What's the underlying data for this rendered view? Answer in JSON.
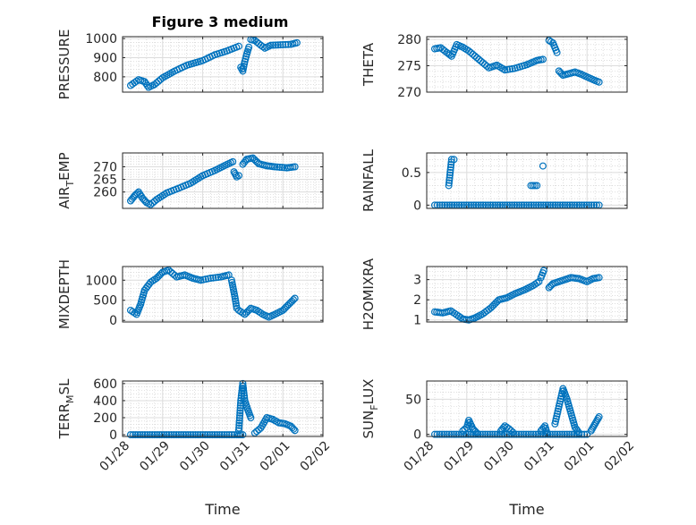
{
  "figure": {
    "title": "Figure 3 medium",
    "series_color": "#0072BD"
  },
  "chart_data": [
    {
      "type": "scatter",
      "ylabel": "PRESSURE",
      "title": "Figure 3 medium",
      "xlabel": "",
      "xlim": [
        28,
        33
      ],
      "ylim": [
        720,
        1010
      ],
      "yticks": [
        800,
        900,
        1000
      ],
      "xticks": [
        28,
        29,
        30,
        31,
        32,
        33
      ],
      "xticklabels": [],
      "grid": true,
      "segments": [
        {
          "points": [
            [
              28.2,
              755
            ],
            [
              28.3,
              770
            ],
            [
              28.4,
              785
            ],
            [
              28.55,
              775
            ],
            [
              28.65,
              745
            ],
            [
              28.8,
              760
            ],
            [
              29.0,
              795
            ],
            [
              29.3,
              830
            ],
            [
              29.6,
              860
            ],
            [
              30.0,
              885
            ],
            [
              30.3,
              915
            ],
            [
              30.6,
              935
            ],
            [
              30.9,
              960
            ]
          ]
        },
        {
          "points": [
            [
              30.95,
              850
            ],
            [
              31.0,
              830
            ],
            [
              31.05,
              880
            ],
            [
              31.1,
              920
            ],
            [
              31.15,
              955
            ]
          ]
        },
        {
          "points": [
            [
              31.2,
              995
            ],
            [
              31.3,
              990
            ],
            [
              31.45,
              965
            ],
            [
              31.55,
              950
            ],
            [
              31.7,
              965
            ],
            [
              32.0,
              968
            ],
            [
              32.2,
              970
            ],
            [
              32.35,
              978
            ]
          ]
        }
      ]
    },
    {
      "type": "scatter",
      "ylabel": "THETA",
      "xlabel": "",
      "xlim": [
        28,
        33
      ],
      "ylim": [
        270,
        280.5
      ],
      "yticks": [
        270,
        275,
        280
      ],
      "xticks": [
        28,
        29,
        30,
        31,
        32,
        33
      ],
      "xticklabels": [],
      "grid": true,
      "segments": [
        {
          "points": [
            [
              28.2,
              278.2
            ],
            [
              28.35,
              278.4
            ],
            [
              28.5,
              277.5
            ],
            [
              28.62,
              276.8
            ],
            [
              28.75,
              279
            ],
            [
              28.9,
              278.5
            ],
            [
              29.05,
              277.8
            ],
            [
              29.3,
              276.2
            ],
            [
              29.55,
              274.6
            ],
            [
              29.75,
              275.1
            ],
            [
              29.95,
              274.2
            ],
            [
              30.2,
              274.5
            ],
            [
              30.5,
              275.2
            ],
            [
              30.75,
              276
            ],
            [
              30.9,
              276.2
            ]
          ]
        },
        {
          "points": [
            [
              31.05,
              279.8
            ],
            [
              31.15,
              279.3
            ],
            [
              31.25,
              277.5
            ]
          ]
        },
        {
          "points": [
            [
              31.3,
              274
            ],
            [
              31.4,
              273.2
            ],
            [
              31.55,
              273.5
            ],
            [
              31.7,
              273.8
            ],
            [
              31.85,
              273.4
            ],
            [
              32.05,
              272.7
            ],
            [
              32.2,
              272.2
            ],
            [
              32.3,
              271.9
            ]
          ]
        }
      ]
    },
    {
      "type": "scatter",
      "ylabel": "AIR_TEMP",
      "xlabel": "",
      "xlim": [
        28,
        33
      ],
      "ylim": [
        253.5,
        275.5
      ],
      "yticks": [
        260,
        265,
        270
      ],
      "xticks": [
        28,
        29,
        30,
        31,
        32,
        33
      ],
      "xticklabels": [],
      "grid": true,
      "segments": [
        {
          "points": [
            [
              28.2,
              256.5
            ],
            [
              28.3,
              258.5
            ],
            [
              28.4,
              260
            ],
            [
              28.5,
              257.5
            ],
            [
              28.6,
              255.8
            ],
            [
              28.7,
              255
            ],
            [
              28.85,
              257
            ],
            [
              29.1,
              259.6
            ],
            [
              29.4,
              261.5
            ],
            [
              29.7,
              263.5
            ],
            [
              30.0,
              266.5
            ],
            [
              30.3,
              268.5
            ],
            [
              30.55,
              270.5
            ],
            [
              30.75,
              272
            ]
          ]
        },
        {
          "points": [
            [
              30.78,
              268
            ],
            [
              30.85,
              266
            ],
            [
              30.9,
              266.5
            ]
          ]
        },
        {
          "points": [
            [
              31.0,
              271
            ],
            [
              31.1,
              273
            ],
            [
              31.25,
              273.5
            ],
            [
              31.4,
              271.2
            ],
            [
              31.6,
              270.4
            ],
            [
              31.8,
              270
            ],
            [
              32.1,
              269.6
            ],
            [
              32.3,
              270
            ]
          ]
        }
      ]
    },
    {
      "type": "scatter",
      "ylabel": "RAINFALL",
      "xlabel": "",
      "xlim": [
        28,
        33
      ],
      "ylim": [
        -0.05,
        0.8
      ],
      "yticks": [
        0,
        0.5
      ],
      "xticks": [
        28,
        29,
        30,
        31,
        32,
        33
      ],
      "xticklabels": [],
      "grid": true,
      "segments": [
        {
          "points": [
            [
              28.2,
              0
            ],
            [
              28.45,
              0
            ],
            [
              28.75,
              0
            ],
            [
              29.05,
              0
            ],
            [
              29.35,
              0
            ],
            [
              29.65,
              0
            ],
            [
              29.95,
              0
            ],
            [
              30.25,
              0
            ],
            [
              30.55,
              0
            ],
            [
              30.85,
              0
            ],
            [
              31.15,
              0
            ],
            [
              31.45,
              0
            ],
            [
              31.75,
              0
            ],
            [
              32.05,
              0
            ],
            [
              32.3,
              0
            ]
          ]
        },
        {
          "points": [
            [
              28.55,
              0.3
            ],
            [
              28.62,
              0.7
            ],
            [
              28.68,
              0.7
            ]
          ]
        },
        {
          "points": [
            [
              30.6,
              0.3
            ],
            [
              30.75,
              0.3
            ]
          ]
        },
        {
          "points": [
            [
              30.9,
              0.6
            ]
          ]
        }
      ]
    },
    {
      "type": "scatter",
      "ylabel": "MIXDEPTH",
      "xlabel": "",
      "xlim": [
        28,
        33
      ],
      "ylim": [
        -40,
        1340
      ],
      "yticks": [
        0,
        500,
        1000
      ],
      "xticks": [
        28,
        29,
        30,
        31,
        32,
        33
      ],
      "xticklabels": [],
      "grid": true,
      "segments": [
        {
          "points": [
            [
              28.2,
              250
            ],
            [
              28.35,
              150
            ],
            [
              28.45,
              400
            ],
            [
              28.55,
              750
            ],
            [
              28.7,
              950
            ],
            [
              28.85,
              1050
            ],
            [
              29.0,
              1200
            ],
            [
              29.15,
              1250
            ],
            [
              29.35,
              1080
            ],
            [
              29.55,
              1130
            ],
            [
              29.75,
              1050
            ],
            [
              29.95,
              1000
            ],
            [
              30.2,
              1050
            ],
            [
              30.45,
              1080
            ],
            [
              30.65,
              1130
            ]
          ]
        },
        {
          "points": [
            [
              30.72,
              1000
            ],
            [
              30.8,
              600
            ],
            [
              30.85,
              300
            ]
          ]
        },
        {
          "points": [
            [
              30.9,
              250
            ],
            [
              31.05,
              150
            ],
            [
              31.2,
              300
            ],
            [
              31.35,
              250
            ],
            [
              31.5,
              150
            ],
            [
              31.65,
              80
            ],
            [
              31.8,
              150
            ],
            [
              32.0,
              250
            ],
            [
              32.15,
              400
            ],
            [
              32.3,
              550
            ]
          ]
        }
      ]
    },
    {
      "type": "scatter",
      "ylabel": "H2OMIXRA",
      "xlabel": "",
      "xlim": [
        28,
        33
      ],
      "ylim": [
        0.9,
        3.65
      ],
      "yticks": [
        1,
        2,
        3
      ],
      "xticks": [
        28,
        29,
        30,
        31,
        32,
        33
      ],
      "xticklabels": [],
      "grid": true,
      "segments": [
        {
          "points": [
            [
              28.2,
              1.4
            ],
            [
              28.4,
              1.35
            ],
            [
              28.6,
              1.45
            ],
            [
              28.75,
              1.25
            ],
            [
              28.9,
              1.05
            ],
            [
              29.05,
              1
            ],
            [
              29.2,
              1.1
            ],
            [
              29.4,
              1.3
            ],
            [
              29.6,
              1.6
            ],
            [
              29.8,
              2
            ],
            [
              30.0,
              2.1
            ],
            [
              30.2,
              2.3
            ],
            [
              30.45,
              2.5
            ],
            [
              30.65,
              2.7
            ],
            [
              30.8,
              2.9
            ]
          ]
        },
        {
          "points": [
            [
              30.85,
              3.1
            ],
            [
              30.92,
              3.45
            ]
          ]
        },
        {
          "points": [
            [
              31.05,
              2.6
            ],
            [
              31.15,
              2.8
            ],
            [
              31.3,
              2.9
            ],
            [
              31.45,
              3
            ],
            [
              31.6,
              3.1
            ],
            [
              31.8,
              3.05
            ],
            [
              32.0,
              2.9
            ],
            [
              32.15,
              3.05
            ],
            [
              32.3,
              3.1
            ]
          ]
        }
      ]
    },
    {
      "type": "scatter",
      "ylabel": "TERR_MSL",
      "xlabel": "Time",
      "xlim": [
        28,
        33
      ],
      "ylim": [
        -20,
        630
      ],
      "yticks": [
        0,
        200,
        400,
        600
      ],
      "xticks": [
        28,
        29,
        30,
        31,
        32,
        33
      ],
      "xticklabels": [
        "01/28",
        "01/29",
        "01/30",
        "01/31",
        "02/01",
        "02/02"
      ],
      "grid": true,
      "segments": [
        {
          "points": [
            [
              28.2,
              0
            ],
            [
              28.5,
              0
            ],
            [
              28.8,
              0
            ],
            [
              29.1,
              0
            ],
            [
              29.4,
              0
            ],
            [
              29.7,
              0
            ],
            [
              30.0,
              0
            ],
            [
              30.3,
              0
            ],
            [
              30.6,
              0
            ],
            [
              30.85,
              0
            ],
            [
              31.0,
              0
            ]
          ]
        },
        {
          "points": [
            [
              30.9,
              50
            ],
            [
              30.95,
              400
            ],
            [
              31.0,
              600
            ],
            [
              31.05,
              400
            ],
            [
              31.12,
              300
            ],
            [
              31.2,
              200
            ]
          ]
        },
        {
          "points": [
            [
              31.3,
              20
            ],
            [
              31.45,
              80
            ],
            [
              31.6,
              200
            ],
            [
              31.75,
              180
            ],
            [
              31.9,
              140
            ],
            [
              32.05,
              130
            ],
            [
              32.2,
              100
            ],
            [
              32.3,
              50
            ]
          ]
        }
      ]
    },
    {
      "type": "scatter",
      "ylabel": "SUN_FLUX",
      "xlabel": "Time",
      "xlim": [
        28,
        33
      ],
      "ylim": [
        -3,
        76
      ],
      "yticks": [
        0,
        50
      ],
      "xticks": [
        28,
        29,
        30,
        31,
        32,
        33
      ],
      "xticklabels": [
        "01/28",
        "01/29",
        "01/30",
        "01/31",
        "02/01",
        "02/02"
      ],
      "grid": true,
      "segments": [
        {
          "points": [
            [
              28.2,
              0
            ],
            [
              28.5,
              0
            ],
            [
              28.8,
              0
            ],
            [
              29.1,
              0
            ],
            [
              29.4,
              0
            ],
            [
              29.7,
              0
            ],
            [
              30.0,
              0
            ],
            [
              30.3,
              0
            ],
            [
              30.6,
              0
            ],
            [
              30.9,
              0
            ],
            [
              31.2,
              0
            ],
            [
              31.5,
              0
            ],
            [
              31.8,
              0
            ],
            [
              32.0,
              0
            ]
          ]
        },
        {
          "points": [
            [
              28.9,
              5
            ],
            [
              29.0,
              10
            ],
            [
              29.05,
              20
            ],
            [
              29.15,
              8
            ],
            [
              29.25,
              2
            ]
          ]
        },
        {
          "points": [
            [
              29.85,
              5
            ],
            [
              29.95,
              12
            ],
            [
              30.05,
              8
            ],
            [
              30.15,
              3
            ]
          ]
        },
        {
          "points": [
            [
              30.85,
              5
            ],
            [
              30.95,
              12
            ],
            [
              31.0,
              2
            ]
          ]
        },
        {
          "points": [
            [
              31.2,
              15
            ],
            [
              31.3,
              40
            ],
            [
              31.4,
              65
            ],
            [
              31.5,
              50
            ],
            [
              31.6,
              30
            ],
            [
              31.7,
              10
            ],
            [
              31.8,
              2
            ]
          ]
        },
        {
          "points": [
            [
              32.1,
              5
            ],
            [
              32.2,
              15
            ],
            [
              32.3,
              25
            ]
          ]
        }
      ]
    }
  ]
}
